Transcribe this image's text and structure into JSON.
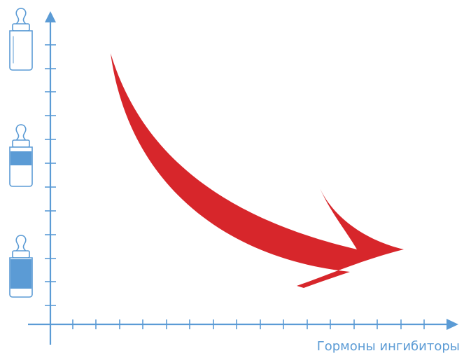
{
  "axes": {
    "x_label": "Гормоны ингибиторы",
    "axis_color": "#5b9bd5"
  },
  "bottles": [
    {
      "fill_level": 0.0
    },
    {
      "fill_level": 0.5
    },
    {
      "fill_level": 0.85
    }
  ],
  "trend": {
    "direction": "decreasing",
    "arrow_color": "#d7262b"
  },
  "colors": {
    "bottle_outline": "#5b9bd5",
    "bottle_fill": "#5b9bd5"
  }
}
